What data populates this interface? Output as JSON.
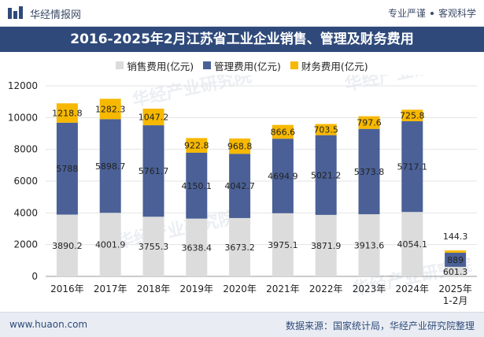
{
  "header": {
    "brand": "华经情报网",
    "tagline_left": "专业严谨",
    "tagline_right": "客观科学"
  },
  "title": "2016-2025年2月江苏省工业企业销售、管理及财务费用",
  "footer": {
    "url": "www.huaon.com",
    "source": "数据来源：国家统计局，华经产业研究院整理"
  },
  "watermark": "华经产业研究院",
  "colors": {
    "sales": "#dcdcdc",
    "management": "#4a6096",
    "finance": "#f7b800",
    "title_bg": "#2f4a7a"
  },
  "chart_data": {
    "type": "bar",
    "stacked": true,
    "title": "2016-2025年2月江苏省工业企业销售、管理及财务费用",
    "categories": [
      "2016年",
      "2017年",
      "2018年",
      "2019年",
      "2020年",
      "2021年",
      "2022年",
      "2023年",
      "2024年",
      "2025年\n1-2月"
    ],
    "series": [
      {
        "name": "销售费用(亿元)",
        "values": [
          3890.2,
          4001.9,
          3755.3,
          3638.4,
          3673.2,
          3975.1,
          3871.9,
          3913.6,
          4054.1,
          601.3
        ]
      },
      {
        "name": "管理费用(亿元)",
        "values": [
          5788,
          5898.7,
          5761.7,
          4150.1,
          4042.7,
          4694.9,
          5021.2,
          5373.8,
          5717.1,
          889
        ]
      },
      {
        "name": "财务费用(亿元)",
        "values": [
          1218.8,
          1282.3,
          1047.2,
          922.8,
          968.8,
          866.6,
          703.5,
          797.6,
          725.8,
          144.3
        ]
      }
    ],
    "value_labels": [
      [
        "3890.2",
        "4001.9",
        "3755.3",
        "3638.4",
        "3673.2",
        "3975.1",
        "3871.9",
        "3913.6",
        "4054.1",
        "601.3"
      ],
      [
        "5788",
        "5898.7",
        "5761.7",
        "4150.1",
        "4042.7",
        "4694.9",
        "5021.2",
        "5373.8",
        "5717.1",
        "889"
      ],
      [
        "1218.8",
        "1282.3",
        "1047.2",
        "922.8",
        "968.8",
        "866.6",
        "703.5",
        "797.6",
        "725.8",
        "144.3"
      ]
    ],
    "ylim": [
      0,
      12000
    ],
    "yticks": [
      0,
      2000,
      4000,
      6000,
      8000,
      10000,
      12000
    ],
    "ytick_labels": [
      "0",
      "2000",
      "4000",
      "6000",
      "8000",
      "10000",
      "12000"
    ],
    "grid": true,
    "legend": "top-center"
  }
}
